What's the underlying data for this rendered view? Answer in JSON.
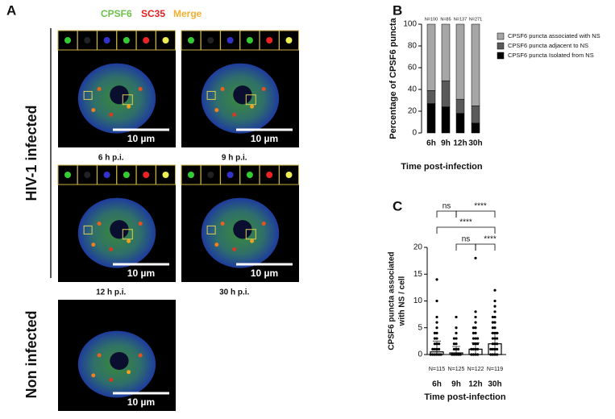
{
  "panel_a": {
    "label": "A",
    "header": [
      "CPSF6",
      "SC35",
      "Merge"
    ],
    "row_labels": [
      "HIV-1 infected",
      "Non infected"
    ],
    "images": [
      {
        "caption": "6 h p.i.",
        "scale": "10 µm"
      },
      {
        "caption": "9 h p.i.",
        "scale": "10 µm"
      },
      {
        "caption": "12 h p.i.",
        "scale": "10 µm"
      },
      {
        "caption": "30 h p.i.",
        "scale": "10 µm"
      }
    ],
    "non_infected_scale": "10 µm"
  },
  "chart_data": [
    {
      "type": "bar",
      "label": "B",
      "stacked": true,
      "ylabel": "Percentage of CPSF6 puncta",
      "xlabel": "Time post-infection",
      "categories": [
        "6h",
        "9h",
        "12h",
        "30h"
      ],
      "n_labels": [
        "N=100",
        "N=85",
        "N=137",
        "N=271"
      ],
      "series": [
        {
          "name": "CPSF6 puncta Isolated from NS",
          "color": "#000000",
          "values": [
            27,
            24,
            18,
            9
          ]
        },
        {
          "name": "CPSF6 puncta adjacent to NS",
          "color": "#5a5a5a",
          "values": [
            12,
            24,
            13,
            16
          ]
        },
        {
          "name": "CPSF6 puncta associated with NS",
          "color": "#a6a6a6",
          "values": [
            61,
            52,
            69,
            75
          ]
        }
      ],
      "ylim": [
        0,
        100
      ],
      "yticks": [
        0,
        20,
        40,
        60,
        80,
        100
      ]
    },
    {
      "type": "scatter",
      "label": "C",
      "ylabel": [
        "CPSF6 puncta associated",
        "with NS / cell"
      ],
      "xlabel": "Time post-infection",
      "categories": [
        "6h",
        "9h",
        "12h",
        "30h"
      ],
      "n_labels": [
        "N=115",
        "N=125",
        "N=122",
        "N=119"
      ],
      "points": [
        [
          14,
          10,
          7,
          6,
          5,
          4,
          4,
          3,
          3,
          2,
          2,
          2,
          1,
          1,
          1,
          1,
          0,
          0,
          0,
          0,
          0,
          0
        ],
        [
          7,
          5,
          4,
          3,
          3,
          2,
          2,
          1,
          1,
          1,
          0,
          0,
          0,
          0,
          0
        ],
        [
          18,
          8,
          7,
          6,
          5,
          5,
          4,
          4,
          3,
          3,
          3,
          2,
          2,
          2,
          1,
          1,
          1,
          1,
          0,
          0,
          0,
          0
        ],
        [
          12,
          10,
          9,
          8,
          7,
          7,
          6,
          6,
          5,
          5,
          4,
          4,
          4,
          3,
          3,
          3,
          2,
          2,
          2,
          1,
          1,
          1,
          1,
          0,
          0,
          0,
          0
        ]
      ],
      "box_top": [
        0.5,
        0.3,
        1,
        2
      ],
      "error_top": [
        2.5,
        1.5,
        2.2,
        4
      ],
      "annotations": [
        "ns",
        "****",
        "****",
        "ns",
        "****"
      ],
      "ylim": [
        0,
        20
      ],
      "yticks": [
        0,
        5,
        10,
        15,
        20
      ]
    }
  ]
}
